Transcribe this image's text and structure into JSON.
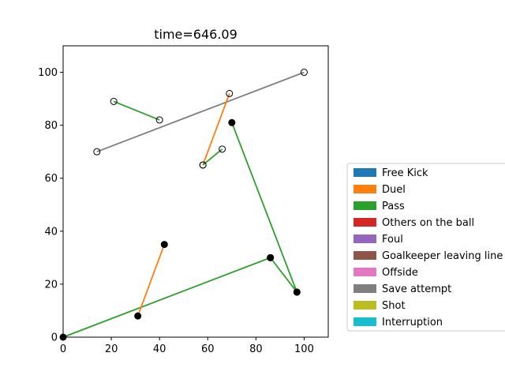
{
  "chart_data": {
    "type": "scatter",
    "title": "time=646.09",
    "xlabel": "",
    "ylabel": "",
    "xlim": [
      0,
      110
    ],
    "ylim": [
      0,
      110
    ],
    "xticks": [
      0,
      20,
      40,
      60,
      80,
      100
    ],
    "yticks": [
      0,
      20,
      40,
      60,
      80,
      100
    ],
    "grid": false,
    "legend_placement": "right, outside plot",
    "legend": [
      {
        "label": "Free Kick",
        "color": "#1f77b4"
      },
      {
        "label": "Duel",
        "color": "#ff7f0e"
      },
      {
        "label": "Pass",
        "color": "#2ca02c"
      },
      {
        "label": "Others on the ball",
        "color": "#d62728"
      },
      {
        "label": "Foul",
        "color": "#9467bd"
      },
      {
        "label": "Goalkeeper leaving line",
        "color": "#8c564b"
      },
      {
        "label": "Offside",
        "color": "#e377c2"
      },
      {
        "label": "Save attempt",
        "color": "#7f7f7f"
      },
      {
        "label": "Shot",
        "color": "#bcbd22"
      },
      {
        "label": "Interruption",
        "color": "#17becf"
      }
    ],
    "segments": [
      {
        "event": "Save attempt",
        "color": "#7f7f7f",
        "points": [
          [
            14,
            70
          ],
          [
            100,
            100
          ]
        ],
        "marker": "open"
      },
      {
        "event": "Pass",
        "color": "#2ca02c",
        "points": [
          [
            21,
            89
          ],
          [
            40,
            82
          ]
        ],
        "marker": "open"
      },
      {
        "event": "Duel",
        "color": "#ff7f0e",
        "points": [
          [
            58,
            65
          ],
          [
            69,
            92
          ]
        ],
        "marker": "open"
      },
      {
        "event": "Pass",
        "color": "#2ca02c",
        "points": [
          [
            58,
            65
          ],
          [
            66,
            71
          ]
        ],
        "marker": "open"
      },
      {
        "event": "Pass",
        "color": "#2ca02c",
        "points": [
          [
            70,
            81
          ],
          [
            97,
            17
          ]
        ],
        "marker": "filled"
      },
      {
        "event": "Pass",
        "color": "#2ca02c",
        "points": [
          [
            0,
            0
          ],
          [
            86,
            30
          ]
        ],
        "marker": "filled"
      },
      {
        "event": "Pass",
        "color": "#2ca02c",
        "points": [
          [
            86,
            30
          ],
          [
            97,
            17
          ]
        ],
        "marker": "filled"
      },
      {
        "event": "Duel",
        "color": "#ff7f0e",
        "points": [
          [
            31,
            8
          ],
          [
            42,
            35
          ]
        ],
        "marker": "filled"
      }
    ]
  }
}
